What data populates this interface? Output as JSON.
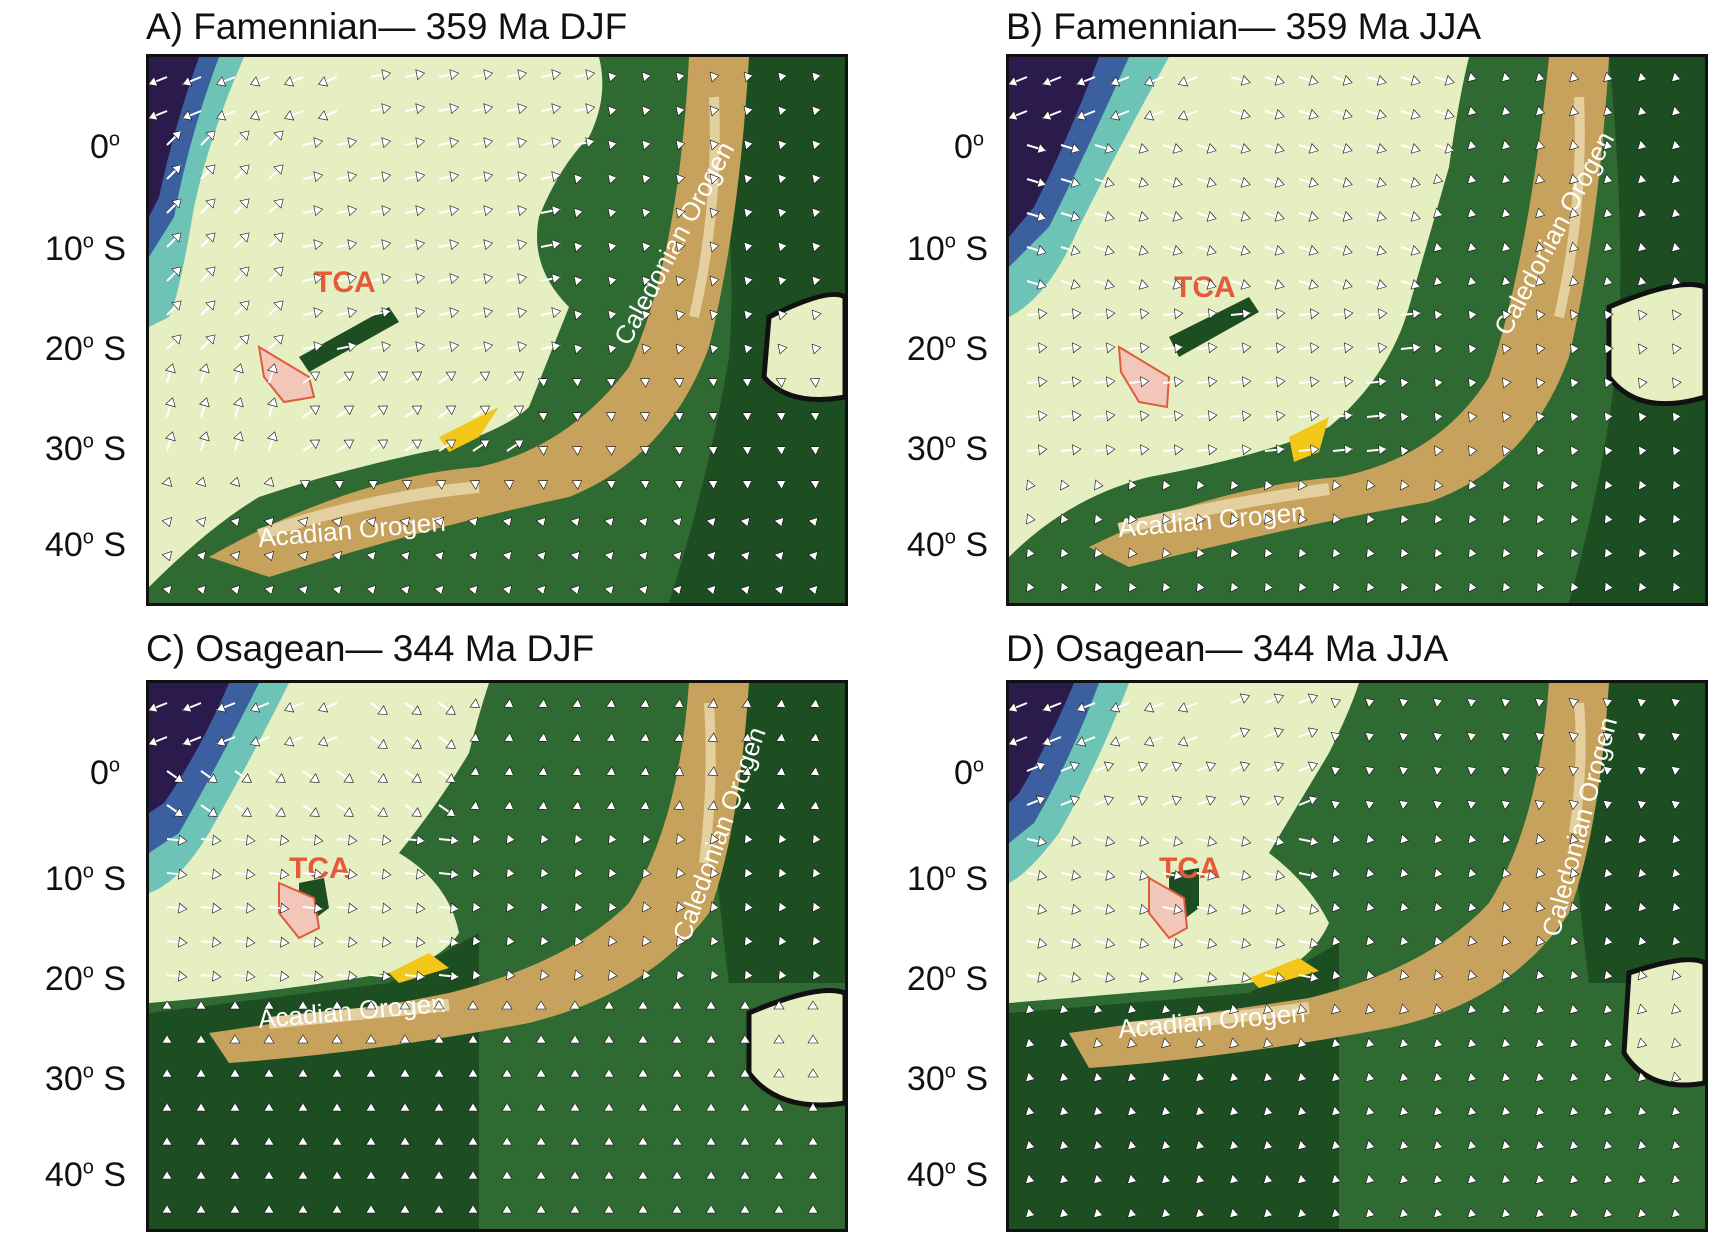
{
  "panels": [
    {
      "title": "A) Famennian— 359 Ma DJF",
      "lat_labels": [
        "0",
        "10",
        "20",
        "30",
        "40"
      ],
      "orogens": [
        "Acadian Orogen",
        "Caledonian Orogen"
      ],
      "site": "TCA"
    },
    {
      "title": "B) Famennian— 359 Ma JJA",
      "lat_labels": [
        "0",
        "10",
        "20",
        "30",
        "40"
      ],
      "orogens": [
        "Acadian Orogen",
        "Caledonian Orogen"
      ],
      "site": "TCA"
    },
    {
      "title": "C) Osagean— 344 Ma DJF",
      "lat_labels": [
        "0",
        "10",
        "20",
        "30",
        "40"
      ],
      "orogens": [
        "Acadian Orogen",
        "Caledonian Orogen"
      ],
      "site": "TCA"
    },
    {
      "title": "D) Osagean— 344 Ma JJA",
      "lat_labels": [
        "0",
        "10",
        "20",
        "30",
        "40"
      ],
      "orogens": [
        "Acadian Orogen",
        "Caledonian Orogen"
      ],
      "site": "TCA"
    }
  ],
  "lat_suffix_degree": "o",
  "lat_suffix_south": "S",
  "colors": {
    "land_low": "#e6efc2",
    "land_mid": "#b9c995",
    "forest": "#2f6a32",
    "forest_dark": "#1d4e22",
    "ocean_dark": "#1c4a21",
    "orogen": "#c7a25c",
    "orogen_light": "#e4cf9f",
    "cold_deep": "#2b1b4d",
    "cold_blue": "#3c5fa0",
    "cold_teal": "#6cc3b6",
    "site_fill": "#f2c6b8",
    "site_stroke": "#e05a3c",
    "site_label": "#e55b3a",
    "yellow": "#f3c719",
    "arrow": "#ffffff"
  }
}
